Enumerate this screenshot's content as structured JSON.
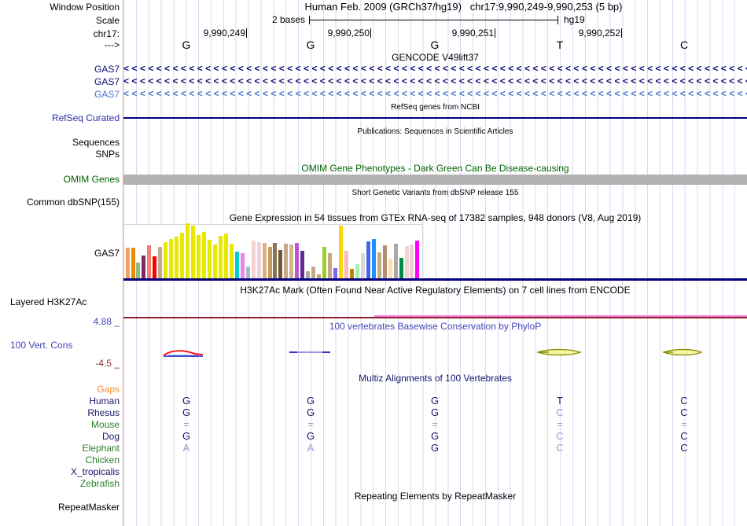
{
  "ruler": {
    "position_label": "Window Position",
    "assembly_title": "Human Feb. 2009 (GRCh37/hg19)   chr17:9,990,249-9,990,253 (5 bp)",
    "scale_label": "Scale",
    "scale_value": "2 bases",
    "assembly_short": "hg19",
    "chrom_label": "chr17:",
    "coords": [
      "9,990,249",
      "9,990,250",
      "9,990,251",
      "9,990,252"
    ],
    "strand_label": "--->",
    "bases": [
      "G",
      "G",
      "G",
      "T",
      "C"
    ]
  },
  "tracks": {
    "gencode": {
      "title": "GENCODE V49lift37",
      "strand_glyph": "<",
      "genes": [
        {
          "label": "GAS7",
          "color": "#0c0c78"
        },
        {
          "label": "GAS7",
          "color": "#0c0c78"
        },
        {
          "label": "GAS7",
          "color": "#4876c8"
        }
      ]
    },
    "refseq": {
      "title": "RefSeq genes from NCBI",
      "label": "RefSeq Curated"
    },
    "publications": {
      "title": "Publications: Sequences in Scientific Articles",
      "labels": [
        "Sequences",
        "SNPs"
      ]
    },
    "omim": {
      "title": "OMIM Gene Phenotypes - Dark Green Can Be Disease-causing",
      "label": "OMIM Genes"
    },
    "dbsnp": {
      "title": "Short Genetic Variants from dbSNP release 155",
      "label": "Common dbSNP(155)"
    },
    "gtex": {
      "title": "Gene Expression in 54 tissues from GTEx RNA-seq of 17382 samples, 948 donors (V8, Aug 2019)",
      "label": "GAS7",
      "bars": [
        [
          "#F2A45F",
          39
        ],
        [
          "#ED8A00",
          39
        ],
        [
          "#8FBC8F",
          20
        ],
        [
          "#7D2B5E",
          29
        ],
        [
          "#F08070",
          42
        ],
        [
          "#FF0000",
          28
        ],
        [
          "#C9A88C",
          40
        ],
        [
          "#E8E800",
          46
        ],
        [
          "#E8E800",
          50
        ],
        [
          "#E8E800",
          53
        ],
        [
          "#E8E800",
          58
        ],
        [
          "#E8E800",
          70
        ],
        [
          "#E8E800",
          67
        ],
        [
          "#E8E800",
          55
        ],
        [
          "#E8E800",
          59
        ],
        [
          "#E8E800",
          49
        ],
        [
          "#E8E800",
          43
        ],
        [
          "#E8E800",
          54
        ],
        [
          "#E8E800",
          57
        ],
        [
          "#E8E800",
          44
        ],
        [
          "#00CED1",
          34
        ],
        [
          "#EE82EE",
          32
        ],
        [
          "#A8BCCC",
          15
        ],
        [
          "#F2D5D0",
          48
        ],
        [
          "#EFD3DA",
          46
        ],
        [
          "#D9B380",
          45
        ],
        [
          "#C49A62",
          40
        ],
        [
          "#8B7355",
          45
        ],
        [
          "#6E5837",
          36
        ],
        [
          "#C8A882",
          44
        ],
        [
          "#D2B48C",
          43
        ],
        [
          "#BA55D3",
          45
        ],
        [
          "#5F2D91",
          35
        ],
        [
          "#B0A79B",
          9
        ],
        [
          "#C8A882",
          15
        ],
        [
          "#B8A26E",
          5
        ],
        [
          "#9ACD32",
          40
        ],
        [
          "#C8A882",
          32
        ],
        [
          "#7B68EE",
          13
        ],
        [
          "#FFD700",
          67
        ],
        [
          "#FFB6C1",
          35
        ],
        [
          "#B8860B",
          12
        ],
        [
          "#A8F0B0",
          18
        ],
        [
          "#D8D8D8",
          32
        ],
        [
          "#4169E1",
          47
        ],
        [
          "#1E90FF",
          50
        ],
        [
          "#C8A882",
          33
        ],
        [
          "#B09070",
          42
        ],
        [
          "#FFDEAD",
          25
        ],
        [
          "#A9A9A9",
          44
        ],
        [
          "#008B45",
          26
        ],
        [
          "#EED5D2",
          41
        ],
        [
          "#EFCDD4",
          43
        ],
        [
          "#FF00FF",
          48
        ]
      ]
    },
    "h3k27ac": {
      "title": "H3K27Ac Mark (Often Found Near Active Regulatory Elements) on 7 cell lines from ENCODE",
      "label": "Layered H3K27Ac"
    },
    "phylop": {
      "title": "100 vertebrates Basewise Conservation by PhyloP",
      "label": "100 Vert. Cons",
      "max": "4.88 _",
      "min": "-4.5 _"
    },
    "multiz": {
      "title": "Multiz Alignments of 100 Vertebrates",
      "gaps_label": "Gaps",
      "species": [
        {
          "label": "Human",
          "label_color": "#16166b",
          "cells": [
            [
              "G",
              1
            ],
            [
              "G",
              1
            ],
            [
              "G",
              1
            ],
            [
              "T",
              1
            ],
            [
              "C",
              1
            ]
          ]
        },
        {
          "label": "Rhesus",
          "label_color": "#16166b",
          "cells": [
            [
              "G",
              1
            ],
            [
              "G",
              1
            ],
            [
              "G",
              1
            ],
            [
              "C",
              0
            ],
            [
              "C",
              1
            ]
          ]
        },
        {
          "label": "Mouse",
          "label_color": "#2a7e2a",
          "cells": [
            [
              "=",
              0
            ],
            [
              "=",
              0
            ],
            [
              "=",
              0
            ],
            [
              "=",
              0
            ],
            [
              "=",
              0
            ]
          ]
        },
        {
          "label": "Dog",
          "label_color": "#16166b",
          "cells": [
            [
              "G",
              1
            ],
            [
              "G",
              1
            ],
            [
              "G",
              1
            ],
            [
              "C",
              0
            ],
            [
              "C",
              1
            ]
          ]
        },
        {
          "label": "Elephant",
          "label_color": "#2a7e2a",
          "cells": [
            [
              "A",
              0
            ],
            [
              "A",
              0
            ],
            [
              "G",
              1
            ],
            [
              "C",
              0
            ],
            [
              "C",
              1
            ]
          ]
        },
        {
          "label": "Chicken",
          "label_color": "#2a7e2a",
          "cells": [
            [
              "",
              1
            ],
            [
              "",
              1
            ],
            [
              "",
              1
            ],
            [
              "",
              1
            ],
            [
              "",
              1
            ]
          ]
        },
        {
          "label": "X_tropicalis",
          "label_color": "#16166b",
          "cells": [
            [
              "",
              1
            ],
            [
              "",
              1
            ],
            [
              "",
              1
            ],
            [
              "",
              1
            ],
            [
              "",
              1
            ]
          ]
        },
        {
          "label": "Zebrafish",
          "label_color": "#2a7e2a",
          "cells": [
            [
              "",
              1
            ],
            [
              "",
              1
            ],
            [
              "",
              1
            ],
            [
              "",
              1
            ],
            [
              "",
              1
            ]
          ]
        }
      ]
    },
    "repeatmasker": {
      "title": "Repeating Elements by RepeatMasker",
      "label": "RepeatMasker"
    }
  },
  "colors": {
    "grid": "#dadaf2",
    "ruler_edge": "#f6abab",
    "track_navy": "#000080",
    "gencode_dark": "#0c0c78",
    "gencode_light": "#4876c8",
    "refseq_label": "#2b2baa",
    "omim_green": "#006400",
    "omim_bar": "#b3b3b3",
    "h3k27ac_dark_red": "#8f2430",
    "h3k27ac_pink": "#f07cd8",
    "phylop_blue": "#4545b8",
    "phylop_neg_red": "#913333",
    "multiz_dark": "#16166b",
    "multiz_light": "#9d9dce",
    "species_green": "#2a7e2a",
    "gaps_orange": "#f28c28"
  }
}
